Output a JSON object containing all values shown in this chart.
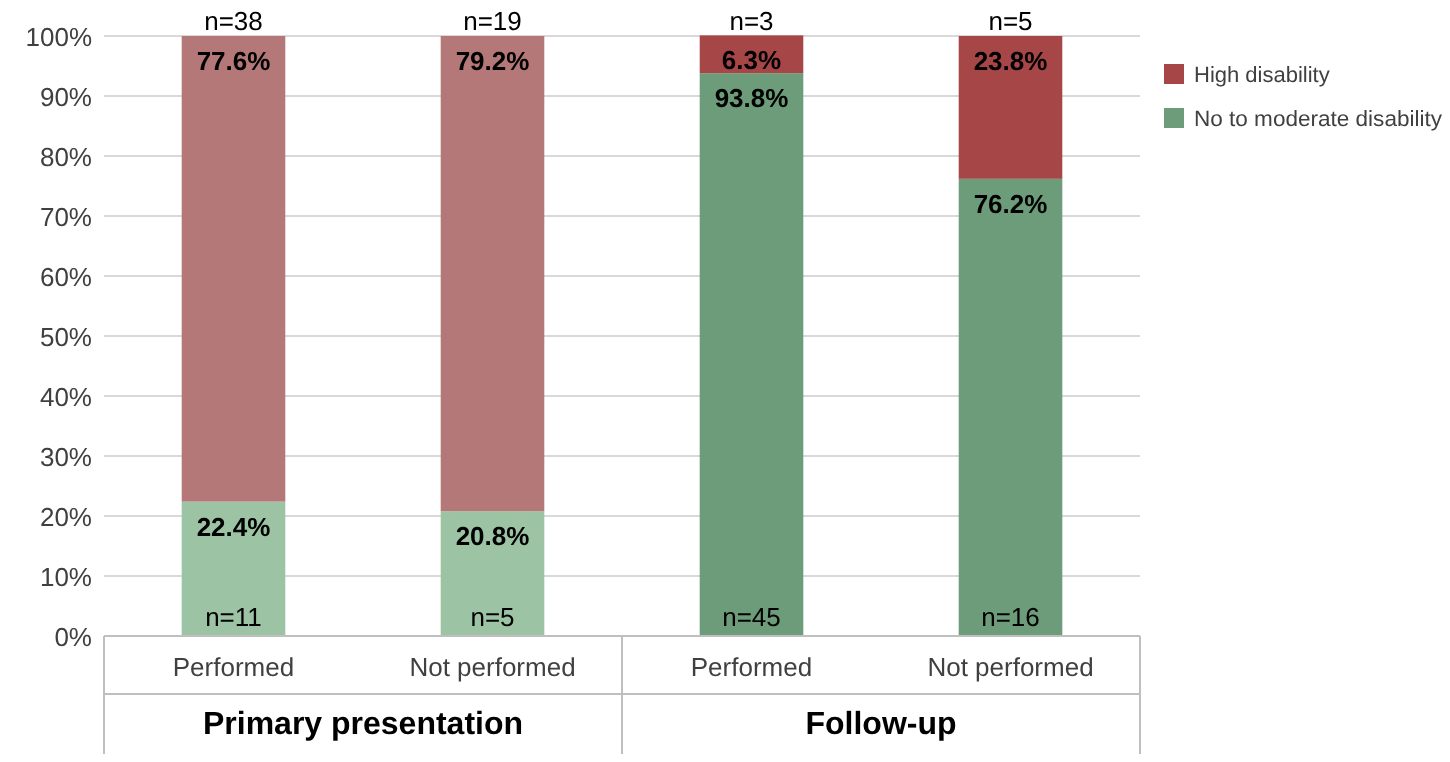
{
  "chart_data": {
    "type": "bar",
    "stacked": true,
    "categories": [
      "Performed",
      "Not performed",
      "Performed",
      "Not performed"
    ],
    "series": [
      {
        "name": "No to moderate disability",
        "color": "#6c9c7a",
        "colors": [
          "#9cc4a4",
          "#9cc4a4",
          "#6c9c7a",
          "#6c9c7a"
        ],
        "values": [
          22.4,
          20.8,
          93.8,
          76.2
        ],
        "value_labels": [
          "22.4%",
          "20.8%",
          "93.8%",
          "76.2%"
        ]
      },
      {
        "name": "High disability",
        "color": "#a64646",
        "colors": [
          "#b57878",
          "#b57878",
          "#a64646",
          "#a64646"
        ],
        "values": [
          77.6,
          79.2,
          6.3,
          23.8
        ],
        "value_labels": [
          "77.6%",
          "79.2%",
          "6.3%",
          "23.8%"
        ]
      }
    ],
    "ylim": [
      0,
      100
    ],
    "yticks": [
      {
        "value": 0,
        "label": "0%"
      },
      {
        "value": 10,
        "label": "10%"
      },
      {
        "value": 20,
        "label": "20%"
      },
      {
        "value": 30,
        "label": "30%"
      },
      {
        "value": 40,
        "label": "40%"
      },
      {
        "value": 50,
        "label": "50%"
      },
      {
        "value": 60,
        "label": "60%"
      },
      {
        "value": 70,
        "label": "70%"
      },
      {
        "value": 80,
        "label": "80%"
      },
      {
        "value": 90,
        "label": "90%"
      },
      {
        "value": 100,
        "label": "100%"
      }
    ],
    "grid": "y",
    "legend": "right",
    "annotations": [
      "n=38",
      "n=19",
      "n=3",
      "n=5",
      "n=11",
      "n=5",
      "n=45",
      "n=16",
      "Primary presentation",
      "Follow-up"
    ]
  }
}
